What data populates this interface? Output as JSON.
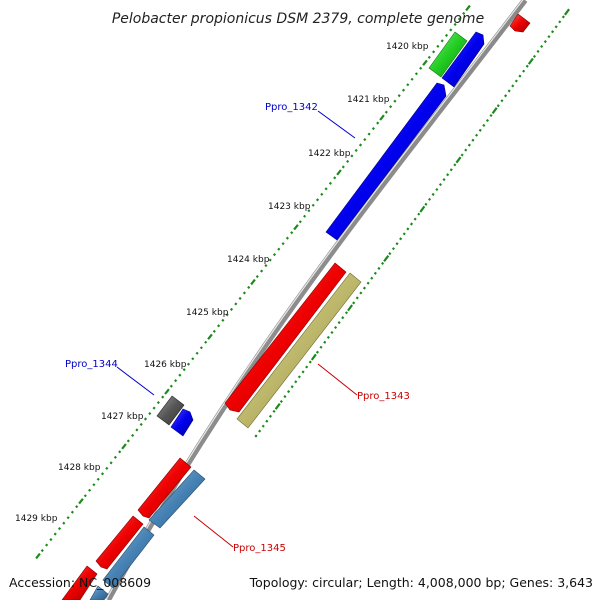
{
  "title": "Pelobacter propionicus DSM 2379, complete genome",
  "accession": "Accession: NC_008609",
  "summary": "Topology: circular; Length: 4,008,000 bp; Genes: 3,643",
  "scale_labels": [
    "1420 kbp",
    "1421 kbp",
    "1422 kbp",
    "1423 kbp",
    "1424 kbp",
    "1425 kbp",
    "1426 kbp",
    "1427 kbp",
    "1428 kbp",
    "1429 kbp"
  ],
  "gene_labels": {
    "ppro_1342": "Ppro_1342",
    "ppro_1343": "Ppro_1343",
    "ppro_1344": "Ppro_1344",
    "ppro_1345": "Ppro_1345"
  },
  "colors": {
    "forward_gene": "#0000ee",
    "reverse_gene": "#ee0000",
    "rna_gene": "#22cc22",
    "other_gene": "#bdb76b",
    "pseudo_gene": "#555555",
    "steel_gene": "#4682b4",
    "backbone": "#8a8a8a",
    "tick": "#1a8a1a",
    "label_forward": "#0000cc",
    "label_reverse": "#cc0000"
  }
}
